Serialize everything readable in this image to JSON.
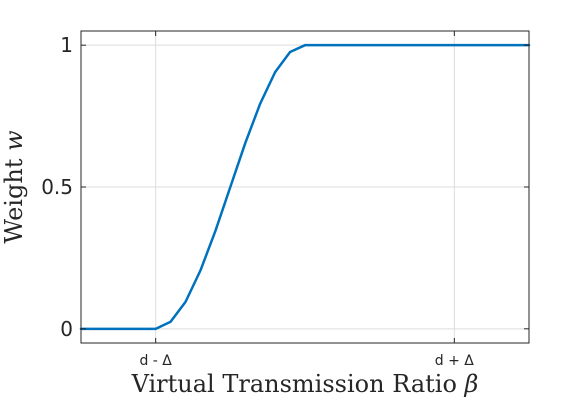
{
  "chart_data": {
    "type": "line",
    "title": "",
    "xlabel": "Virtual Transmission Ratio",
    "xlabel_symbol": "β",
    "ylabel": "Weight",
    "ylabel_symbol": "w",
    "xlim": [
      -1.5,
      1.5
    ],
    "ylim": [
      -0.05,
      1.05
    ],
    "x_ticks": [
      {
        "value": -1,
        "label": "d - Δ"
      },
      {
        "value": 1,
        "label": "d + Δ"
      }
    ],
    "y_ticks": [
      {
        "value": 0,
        "label": "0"
      },
      {
        "value": 0.5,
        "label": "0.5"
      },
      {
        "value": 1,
        "label": "1"
      }
    ],
    "grid": true,
    "line_color": "#0072BD",
    "series": [
      {
        "x": [
          -1.5,
          -1.25,
          -1.0,
          -0.9,
          -0.8,
          -0.7,
          -0.6,
          -0.5,
          -0.4,
          -0.3,
          -0.2,
          -0.1,
          0.0,
          0.1,
          0.2,
          0.3,
          0.4,
          0.5,
          0.6,
          0.7,
          0.8,
          0.9,
          1.0,
          1.25,
          1.5
        ],
        "values": [
          0,
          0,
          0,
          0.025,
          0.095,
          0.206,
          0.345,
          0.5,
          0.655,
          0.794,
          0.905,
          0.976,
          1.0,
          1.0,
          1.0,
          1.0,
          1.0,
          1.0,
          1.0,
          1.0,
          1.0,
          1.0,
          1.0,
          1.0,
          1.0
        ]
      }
    ]
  }
}
